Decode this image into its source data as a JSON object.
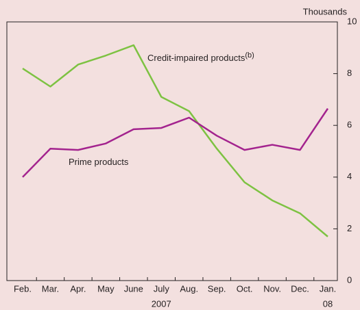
{
  "chart_data": {
    "type": "line",
    "y_unit": "Thousands",
    "categories": [
      "Feb.",
      "Mar.",
      "Apr.",
      "May",
      "June",
      "July",
      "Aug.",
      "Sep.",
      "Oct.",
      "Nov.",
      "Dec.",
      "Jan."
    ],
    "year_labels": [
      "2007",
      "08"
    ],
    "series": [
      {
        "name": "Credit-impaired products",
        "footnote": "(b)",
        "color": "#7dc242",
        "values": [
          8.2,
          7.5,
          8.35,
          8.7,
          9.1,
          7.1,
          6.55,
          5.1,
          3.8,
          3.1,
          2.6,
          1.7
        ]
      },
      {
        "name": "Prime products",
        "color": "#a3238e",
        "values": [
          4.0,
          5.1,
          5.05,
          5.3,
          5.85,
          5.9,
          6.3,
          5.6,
          5.05,
          5.25,
          5.05,
          6.65
        ]
      }
    ],
    "ylim": [
      0,
      10
    ],
    "yticks": [
      0,
      2,
      4,
      6,
      8,
      10
    ],
    "y_axis_side": "right"
  }
}
